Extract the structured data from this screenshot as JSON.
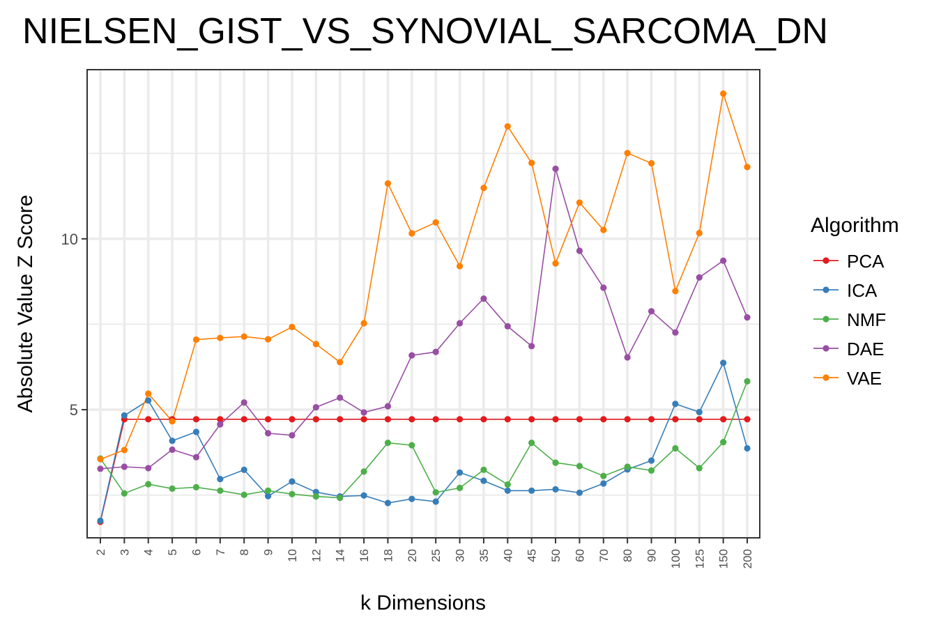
{
  "chart_data": {
    "type": "line",
    "title": "NIELSEN_GIST_VS_SYNOVIAL_SARCOMA_DN",
    "xlabel": "k Dimensions",
    "ylabel": "Absolute Value Z Score",
    "x": [
      "2",
      "3",
      "4",
      "5",
      "6",
      "7",
      "8",
      "9",
      "10",
      "12",
      "14",
      "16",
      "18",
      "20",
      "25",
      "30",
      "35",
      "40",
      "45",
      "50",
      "60",
      "70",
      "80",
      "90",
      "100",
      "125",
      "150",
      "200"
    ],
    "ylim": [
      1.25,
      14.95
    ],
    "yticks": [
      5,
      10
    ],
    "grid": true,
    "legend": {
      "title": "Algorithm",
      "position": "right"
    },
    "series": [
      {
        "name": "PCA",
        "color": "#E41A1C",
        "values": [
          1.72,
          4.72,
          4.72,
          4.72,
          4.72,
          4.72,
          4.72,
          4.72,
          4.72,
          4.72,
          4.72,
          4.72,
          4.72,
          4.72,
          4.72,
          4.72,
          4.72,
          4.72,
          4.72,
          4.72,
          4.72,
          4.72,
          4.72,
          4.72,
          4.72,
          4.72,
          4.72,
          4.72
        ]
      },
      {
        "name": "ICA",
        "color": "#377EB8",
        "values": [
          1.75,
          4.83,
          5.27,
          4.09,
          4.35,
          2.97,
          3.24,
          2.47,
          2.9,
          2.59,
          2.46,
          2.49,
          2.27,
          2.39,
          2.31,
          3.16,
          2.92,
          2.63,
          2.63,
          2.67,
          2.57,
          2.84,
          3.25,
          3.51,
          5.17,
          4.93,
          6.37,
          3.87
        ]
      },
      {
        "name": "NMF",
        "color": "#4DAF4A",
        "values": [
          3.57,
          2.55,
          2.82,
          2.69,
          2.73,
          2.63,
          2.51,
          2.63,
          2.53,
          2.46,
          2.42,
          3.19,
          4.03,
          3.96,
          2.58,
          2.71,
          3.24,
          2.81,
          4.03,
          3.45,
          3.35,
          3.06,
          3.33,
          3.22,
          3.87,
          3.29,
          4.05,
          5.83
        ]
      },
      {
        "name": "DAE",
        "color": "#984EA3",
        "values": [
          3.27,
          3.33,
          3.29,
          3.83,
          3.61,
          4.57,
          5.21,
          4.31,
          4.25,
          5.07,
          5.35,
          4.92,
          5.1,
          6.59,
          6.69,
          7.53,
          8.25,
          7.44,
          6.86,
          12.05,
          9.65,
          8.57,
          6.53,
          7.88,
          7.26,
          8.87,
          9.36,
          7.7
        ]
      },
      {
        "name": "VAE",
        "color": "#FF7F00",
        "values": [
          3.55,
          3.82,
          5.47,
          4.66,
          7.05,
          7.1,
          7.14,
          7.06,
          7.42,
          6.92,
          6.39,
          7.53,
          11.62,
          10.16,
          10.48,
          9.2,
          11.49,
          13.29,
          12.22,
          9.28,
          11.06,
          10.26,
          12.51,
          12.21,
          8.47,
          10.17,
          14.25,
          12.1
        ]
      }
    ]
  }
}
